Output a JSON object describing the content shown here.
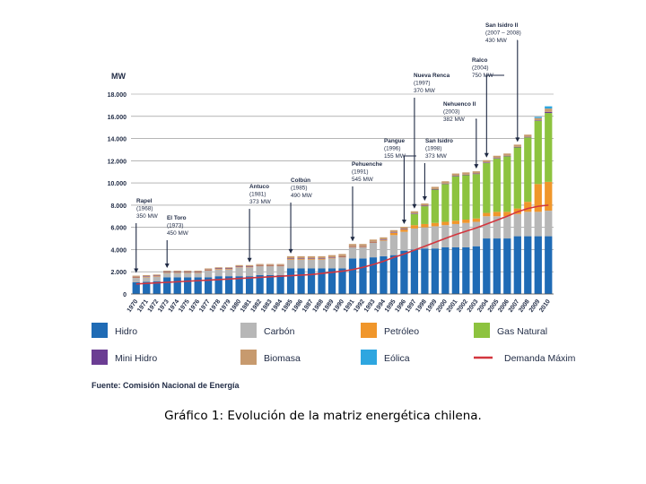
{
  "caption": "Gráfico 1: Evolución de la matriz energética chilena.",
  "source": "Fuente: Comisión Nacional de Energía",
  "chart_data": {
    "type": "bar",
    "stacked": true,
    "ylabel": "MW",
    "ylim": [
      0,
      18000
    ],
    "yticks": [
      "0",
      "2.000",
      "4.000",
      "6.000",
      "8.000",
      "10.000",
      "12.000",
      "14.000",
      "16.000",
      "18.000"
    ],
    "grid": true,
    "legend_position": "bottom",
    "categories": [
      "1970",
      "1971",
      "1972",
      "1973",
      "1974",
      "1975",
      "1976",
      "1977",
      "1978",
      "1979",
      "1980",
      "1981",
      "1982",
      "1983",
      "1984",
      "1985",
      "1986",
      "1987",
      "1988",
      "1989",
      "1990",
      "1991",
      "1992",
      "1993",
      "1994",
      "1995",
      "1996",
      "1997",
      "1998",
      "1999",
      "2000",
      "2001",
      "2002",
      "2003",
      "2004",
      "2005",
      "2006",
      "2007",
      "2008",
      "2009",
      "2010"
    ],
    "series": [
      {
        "name": "Hidro",
        "color": "#1f6bb5",
        "values": [
          1050,
          1100,
          1150,
          1500,
          1500,
          1500,
          1500,
          1500,
          1600,
          1600,
          1600,
          1600,
          1700,
          1700,
          1700,
          2300,
          2300,
          2300,
          2300,
          2300,
          2300,
          3200,
          3200,
          3300,
          3400,
          3500,
          3900,
          4000,
          4100,
          4100,
          4200,
          4200,
          4200,
          4300,
          5000,
          5000,
          5000,
          5200,
          5200,
          5200,
          5200
        ]
      },
      {
        "name": "Carbón",
        "color": "#b7b7b7",
        "values": [
          400,
          400,
          400,
          400,
          400,
          400,
          400,
          600,
          600,
          600,
          800,
          800,
          800,
          800,
          800,
          800,
          800,
          800,
          800,
          900,
          1000,
          1000,
          1000,
          1300,
          1400,
          1800,
          1700,
          1900,
          1900,
          2000,
          2000,
          2100,
          2200,
          2200,
          2000,
          2000,
          2000,
          2000,
          2200,
          2200,
          2300
        ]
      },
      {
        "name": "Petróleo",
        "color": "#f0962b",
        "values": [
          50,
          50,
          50,
          50,
          50,
          50,
          50,
          50,
          50,
          50,
          50,
          50,
          50,
          50,
          50,
          50,
          50,
          50,
          50,
          50,
          50,
          50,
          50,
          50,
          50,
          200,
          200,
          300,
          300,
          300,
          300,
          300,
          300,
          300,
          300,
          400,
          400,
          500,
          900,
          2500,
          2600
        ]
      },
      {
        "name": "Gas Natural",
        "color": "#8dc33f",
        "values": [
          0,
          0,
          0,
          0,
          0,
          0,
          0,
          0,
          0,
          0,
          0,
          0,
          0,
          0,
          0,
          0,
          0,
          0,
          0,
          0,
          0,
          0,
          0,
          0,
          0,
          0,
          0,
          1000,
          1600,
          3000,
          3400,
          4000,
          4000,
          4000,
          4500,
          4800,
          5000,
          5500,
          5800,
          5700,
          6200
        ]
      },
      {
        "name": "Mini Hidro",
        "color": "#6b3d93",
        "values": [
          50,
          50,
          50,
          50,
          50,
          50,
          50,
          50,
          50,
          50,
          50,
          50,
          50,
          50,
          50,
          50,
          50,
          50,
          50,
          50,
          50,
          50,
          50,
          50,
          50,
          50,
          50,
          50,
          50,
          50,
          50,
          50,
          50,
          50,
          50,
          50,
          50,
          50,
          50,
          50,
          100
        ]
      },
      {
        "name": "Biomasa",
        "color": "#c79a6e",
        "values": [
          100,
          100,
          100,
          100,
          100,
          100,
          100,
          100,
          100,
          100,
          100,
          100,
          100,
          100,
          100,
          200,
          200,
          200,
          200,
          200,
          200,
          200,
          200,
          200,
          200,
          200,
          200,
          200,
          200,
          200,
          200,
          200,
          200,
          200,
          200,
          200,
          200,
          200,
          200,
          200,
          300
        ]
      },
      {
        "name": "Eólica",
        "color": "#2ea6e0",
        "values": [
          0,
          0,
          0,
          0,
          0,
          0,
          0,
          0,
          0,
          0,
          0,
          0,
          0,
          0,
          0,
          0,
          0,
          0,
          0,
          0,
          0,
          0,
          0,
          0,
          0,
          0,
          0,
          0,
          0,
          0,
          0,
          0,
          0,
          0,
          0,
          0,
          0,
          0,
          0,
          100,
          200
        ]
      }
    ],
    "line_series": {
      "name": "Demanda Máxim",
      "color": "#d3363e",
      "values": [
        900,
        950,
        1000,
        1050,
        1100,
        1150,
        1200,
        1250,
        1300,
        1350,
        1400,
        1450,
        1500,
        1550,
        1600,
        1650,
        1700,
        1750,
        1850,
        1950,
        2050,
        2200,
        2400,
        2650,
        2950,
        3300,
        3600,
        3950,
        4300,
        4650,
        5000,
        5350,
        5650,
        5950,
        6300,
        6650,
        7000,
        7400,
        7700,
        7900,
        8000
      ]
    },
    "annotations": [
      {
        "year": "1970",
        "lines": [
          "Rapel",
          "(1968)",
          "350 MW"
        ]
      },
      {
        "year": "1973",
        "lines": [
          "El Toro",
          "(1973)",
          "450 MW"
        ]
      },
      {
        "year": "1981",
        "lines": [
          "Antuco",
          "(1981)",
          "373 MW"
        ]
      },
      {
        "year": "1985",
        "lines": [
          "Colbún",
          "(1985)",
          "490 MW"
        ]
      },
      {
        "year": "1991",
        "lines": [
          "Pehuenche",
          "(1991)",
          "545 MW"
        ]
      },
      {
        "year": "1996",
        "lines": [
          "Pangue",
          "(1996)",
          "155 MW"
        ]
      },
      {
        "year": "1997",
        "lines": [
          "Nueva Renca",
          "(1997)",
          "370 MW"
        ]
      },
      {
        "year": "1998",
        "lines": [
          "San Isidro",
          "(1998)",
          "373 MW"
        ]
      },
      {
        "year": "2003",
        "lines": [
          "Nehuenco II",
          "(2003)",
          "382 MW"
        ]
      },
      {
        "year": "2004",
        "lines": [
          "Ralco",
          "(2004)",
          "750 MW"
        ]
      },
      {
        "year": "2007",
        "lines": [
          "San Isidro II",
          "(2007 – 2008)",
          "430 MW"
        ]
      }
    ]
  }
}
